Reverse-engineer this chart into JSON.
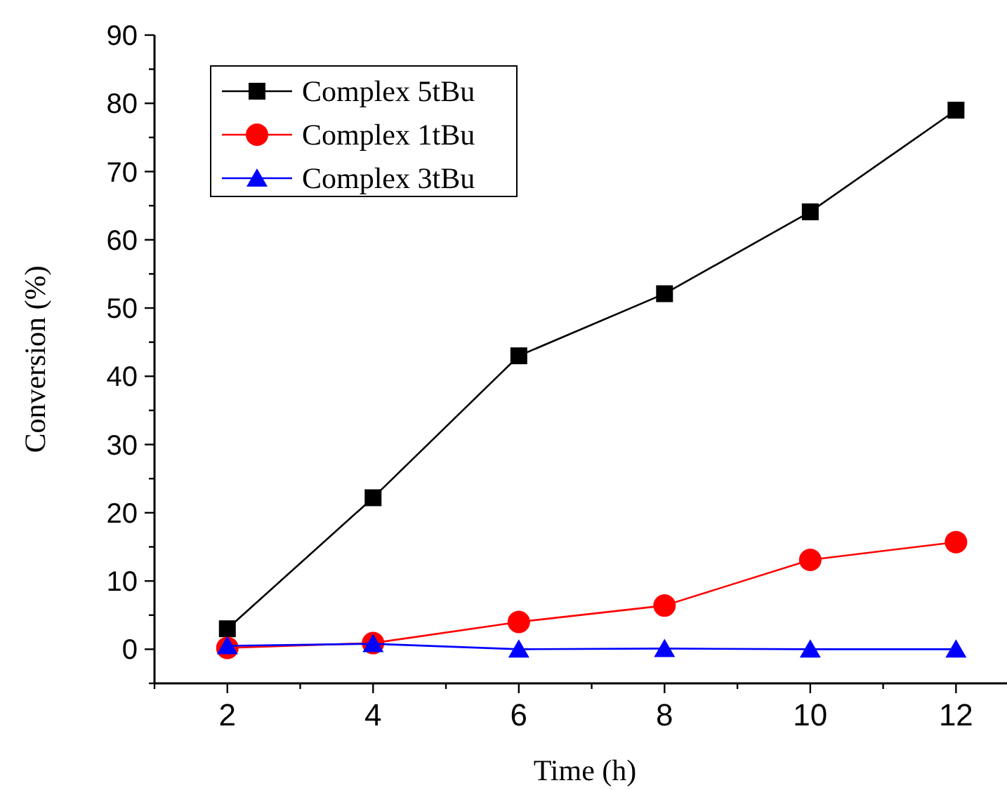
{
  "chart_data": {
    "type": "line",
    "xlabel": "Time (h)",
    "ylabel": "Conversion (%)",
    "x": [
      2,
      4,
      6,
      8,
      10,
      12
    ],
    "series": [
      {
        "name": "Complex 5tBu",
        "color": "#000000",
        "marker": "square",
        "values": [
          3,
          22.2,
          43,
          52.1,
          64.1,
          79
        ]
      },
      {
        "name": "Complex 1tBu",
        "color": "#ff0000",
        "marker": "circle",
        "values": [
          0.2,
          0.9,
          4,
          6.4,
          13.1,
          15.7
        ]
      },
      {
        "name": "Complex 3tBu",
        "color": "#0000ff",
        "marker": "triangle",
        "values": [
          0.5,
          0.8,
          0,
          0.1,
          0,
          0
        ]
      }
    ],
    "xlim": [
      1,
      12.7
    ],
    "xticks": [
      {
        "value": 1,
        "label": null
      },
      2,
      {
        "value": 3,
        "label": null
      },
      4,
      {
        "value": 5,
        "label": null
      },
      6,
      {
        "value": 7,
        "label": null
      },
      8,
      {
        "value": 9,
        "label": null
      },
      10,
      {
        "value": 11,
        "label": null
      },
      12
    ],
    "ylim": [
      -5,
      90
    ],
    "yticks": [
      {
        "value": -5,
        "label": null
      },
      0,
      {
        "value": 5,
        "label": null
      },
      10,
      {
        "value": 15,
        "label": null
      },
      20,
      {
        "value": 25,
        "label": null
      },
      30,
      {
        "value": 35,
        "label": null
      },
      40,
      {
        "value": 45,
        "label": null
      },
      50,
      {
        "value": 55,
        "label": null
      },
      60,
      {
        "value": 65,
        "label": null
      },
      70,
      {
        "value": 75,
        "label": null
      },
      80,
      {
        "value": 85,
        "label": null
      },
      90
    ],
    "grid": false,
    "legend": "top left",
    "line_style": "solid"
  }
}
